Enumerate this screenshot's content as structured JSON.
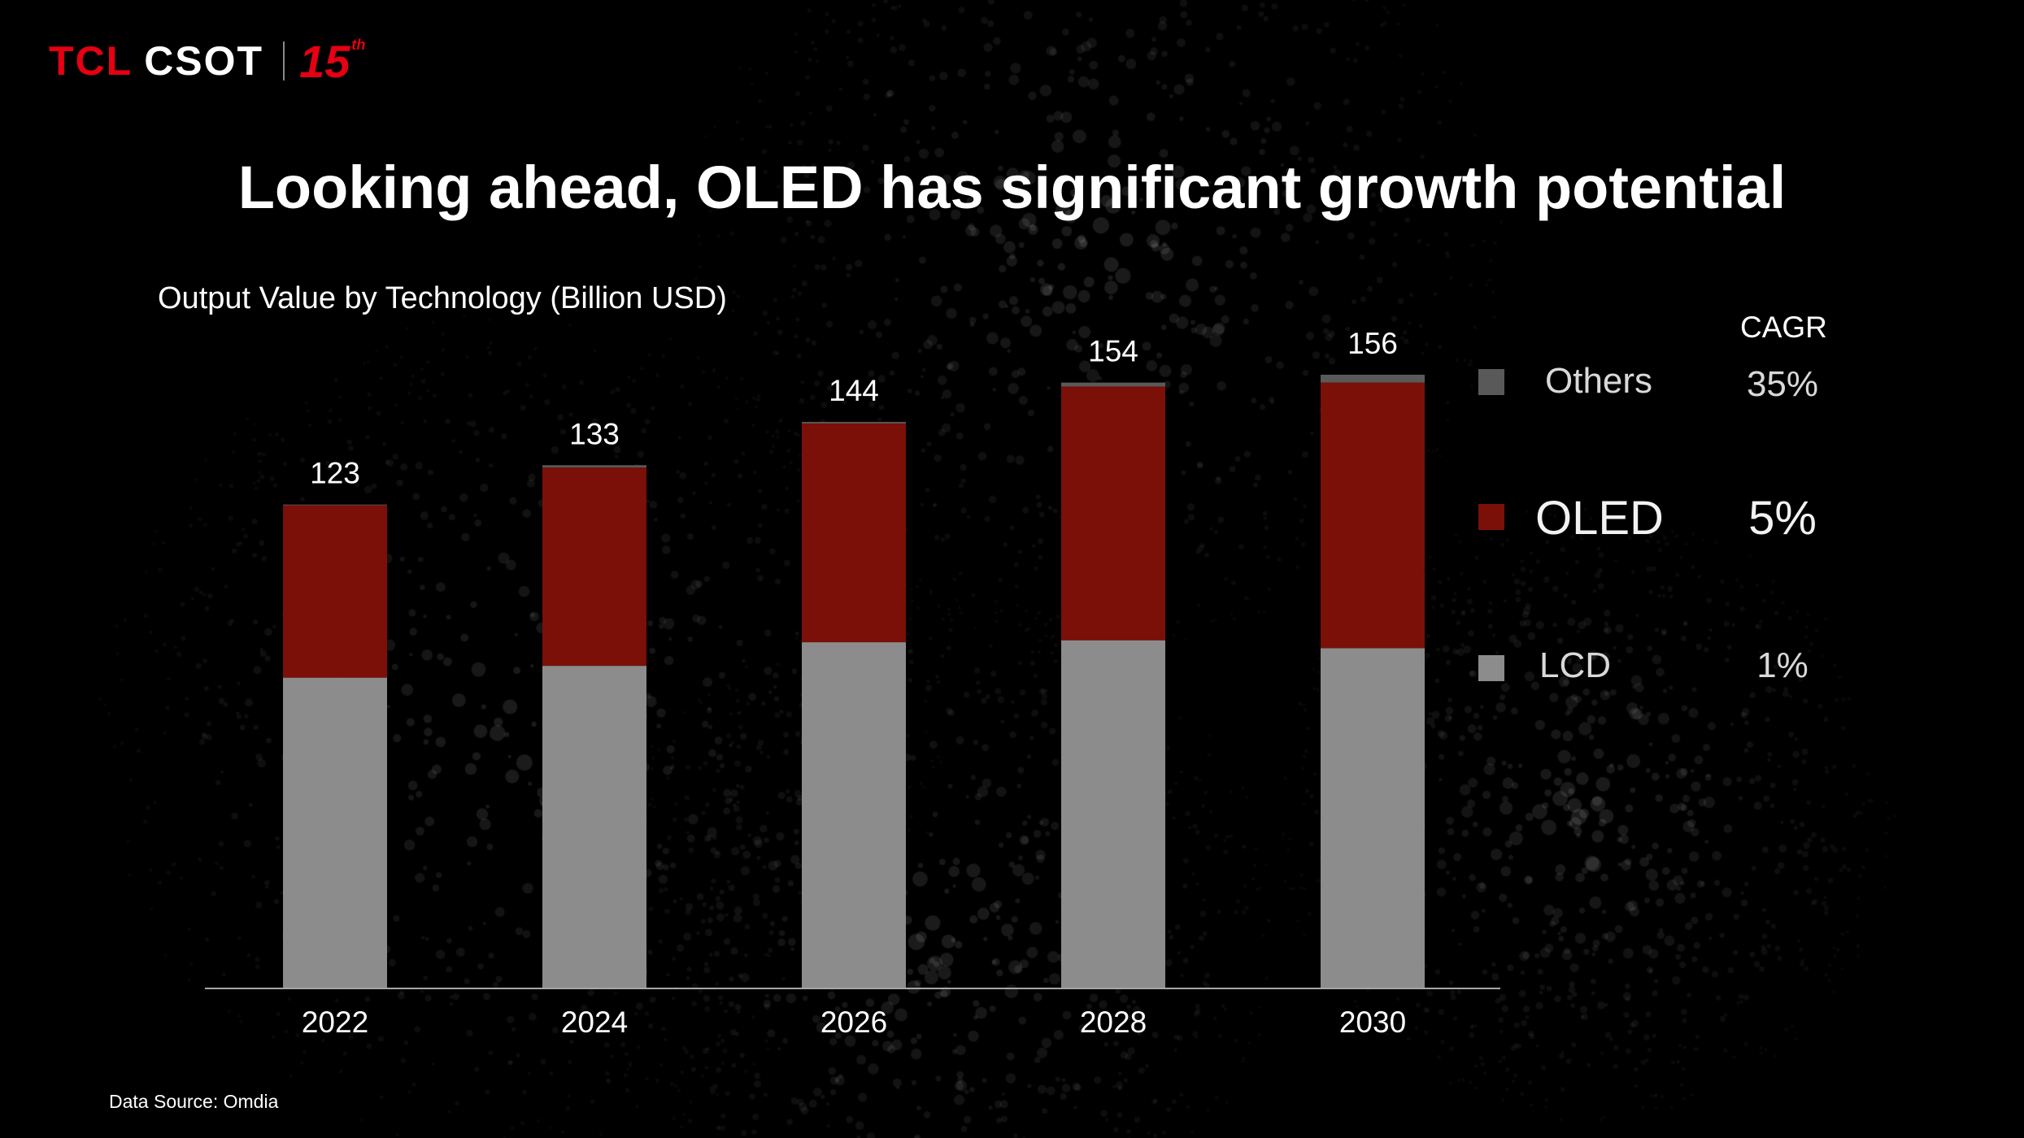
{
  "brand": {
    "name_red": "TCL",
    "name_white": "CSOT",
    "anniversary": "15",
    "anniversary_suffix": "th"
  },
  "header": {
    "title": "Looking ahead, OLED has significant growth potential"
  },
  "chart_subtitle": "Output Value by Technology (Billion USD)",
  "legend": {
    "cagr_header": "CAGR",
    "items": [
      {
        "label": "Others",
        "cagr": "35%",
        "color": "#595959"
      },
      {
        "label": "OLED",
        "cagr": "5%",
        "color": "#7a1008"
      },
      {
        "label": "LCD",
        "cagr": "1%",
        "color": "#8c8c8c"
      }
    ]
  },
  "chart_data": {
    "type": "bar",
    "stacked": true,
    "title": "Output Value by Technology (Billion USD)",
    "categories": [
      "2022",
      "2024",
      "2026",
      "2028",
      "2030"
    ],
    "series": [
      {
        "name": "LCD",
        "values": [
          79,
          82,
          88,
          88.5,
          86.5
        ]
      },
      {
        "name": "OLED",
        "values": [
          43.8,
          50.4,
          55.6,
          64.5,
          67.5
        ]
      },
      {
        "name": "Others",
        "values": [
          0.2,
          0.6,
          0.4,
          1.0,
          2.0
        ]
      }
    ],
    "totals": [
      123,
      133,
      144,
      154,
      156
    ],
    "ylim": [
      0,
      160
    ],
    "xlabel": "",
    "ylabel": ""
  },
  "footer": {
    "source": "Data Source: Omdia"
  }
}
